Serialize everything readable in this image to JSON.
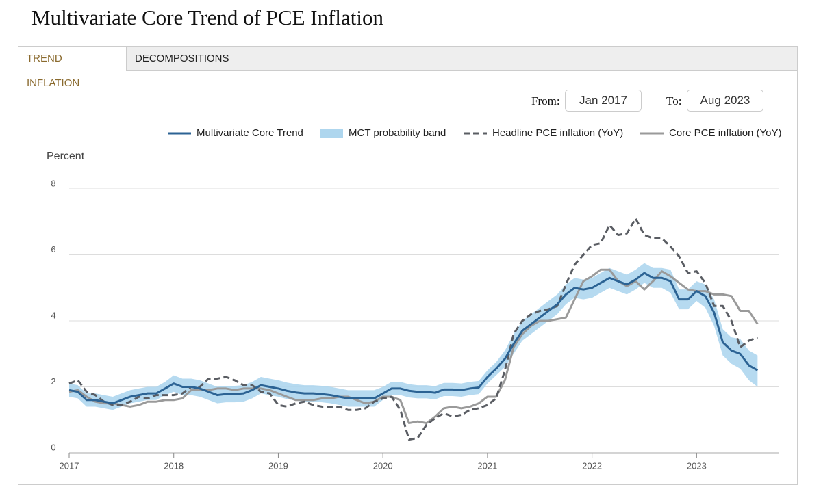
{
  "ui": {
    "tabs": [
      "TREND INFLATION",
      "DECOMPOSITIONS"
    ],
    "from_label": "From:",
    "from_value": "Jan 2017",
    "to_label": "To:",
    "to_value": "Aug 2023"
  },
  "chart_data": {
    "type": "line",
    "title": "Multivariate Core Trend of PCE Inflation",
    "y_label": "Percent",
    "x": [
      2017,
      2017.083,
      2017.167,
      2017.25,
      2017.333,
      2017.417,
      2017.5,
      2017.583,
      2017.667,
      2017.75,
      2017.833,
      2017.917,
      2018,
      2018.083,
      2018.167,
      2018.25,
      2018.333,
      2018.417,
      2018.5,
      2018.583,
      2018.667,
      2018.75,
      2018.833,
      2018.917,
      2019,
      2019.083,
      2019.167,
      2019.25,
      2019.333,
      2019.417,
      2019.5,
      2019.583,
      2019.667,
      2019.75,
      2019.833,
      2019.917,
      2020,
      2020.083,
      2020.167,
      2020.25,
      2020.333,
      2020.417,
      2020.5,
      2020.583,
      2020.667,
      2020.75,
      2020.833,
      2020.917,
      2021,
      2021.083,
      2021.167,
      2021.25,
      2021.333,
      2021.417,
      2021.5,
      2021.583,
      2021.667,
      2021.75,
      2021.833,
      2021.917,
      2022,
      2022.083,
      2022.167,
      2022.25,
      2022.333,
      2022.417,
      2022.5,
      2022.583,
      2022.667,
      2022.75,
      2022.833,
      2022.917,
      2023,
      2023.083,
      2023.167,
      2023.25,
      2023.333,
      2023.417,
      2023.5,
      2023.583
    ],
    "series": [
      {
        "name": "Multivariate Core Trend",
        "color": "#2c6394",
        "values": [
          1.9,
          1.85,
          1.6,
          1.6,
          1.55,
          1.5,
          1.6,
          1.7,
          1.75,
          1.8,
          1.8,
          1.95,
          2.1,
          2.0,
          2.0,
          1.95,
          1.85,
          1.75,
          1.78,
          1.78,
          1.8,
          1.9,
          2.05,
          2.0,
          1.95,
          1.88,
          1.83,
          1.8,
          1.8,
          1.78,
          1.75,
          1.7,
          1.65,
          1.65,
          1.65,
          1.65,
          1.8,
          1.95,
          1.95,
          1.88,
          1.85,
          1.85,
          1.82,
          1.92,
          1.92,
          1.9,
          1.95,
          1.98,
          2.3,
          2.55,
          2.85,
          3.3,
          3.7,
          3.9,
          4.1,
          4.3,
          4.5,
          4.8,
          5.0,
          4.95,
          5.0,
          5.15,
          5.3,
          5.2,
          5.1,
          5.25,
          5.45,
          5.3,
          5.3,
          5.2,
          4.65,
          4.65,
          4.9,
          4.75,
          4.25,
          3.35,
          3.1,
          3.0,
          2.65,
          2.5
        ]
      },
      {
        "name": "MCT probability band",
        "color": "#aed6ee",
        "band": true,
        "lower": [
          1.7,
          1.65,
          1.4,
          1.4,
          1.35,
          1.3,
          1.4,
          1.5,
          1.55,
          1.6,
          1.6,
          1.75,
          1.85,
          1.75,
          1.75,
          1.7,
          1.6,
          1.5,
          1.53,
          1.53,
          1.55,
          1.65,
          1.8,
          1.75,
          1.7,
          1.63,
          1.58,
          1.55,
          1.55,
          1.53,
          1.5,
          1.45,
          1.4,
          1.4,
          1.4,
          1.4,
          1.6,
          1.75,
          1.75,
          1.68,
          1.65,
          1.65,
          1.62,
          1.72,
          1.72,
          1.7,
          1.75,
          1.78,
          2.1,
          2.35,
          2.6,
          3.0,
          3.4,
          3.6,
          3.8,
          4.0,
          4.2,
          4.5,
          4.7,
          4.65,
          4.7,
          4.85,
          5.0,
          4.9,
          4.8,
          4.95,
          5.15,
          5.0,
          5.0,
          4.85,
          4.35,
          4.35,
          4.6,
          4.4,
          3.85,
          2.95,
          2.7,
          2.55,
          2.2,
          2.0
        ],
        "upper": [
          2.1,
          2.05,
          1.8,
          1.8,
          1.75,
          1.7,
          1.8,
          1.9,
          1.95,
          2.0,
          2.0,
          2.15,
          2.35,
          2.25,
          2.25,
          2.2,
          2.1,
          2.0,
          2.03,
          2.03,
          2.05,
          2.15,
          2.3,
          2.25,
          2.2,
          2.13,
          2.08,
          2.05,
          2.05,
          2.03,
          2.0,
          1.95,
          1.9,
          1.9,
          1.9,
          1.9,
          2.0,
          2.15,
          2.15,
          2.08,
          2.05,
          2.05,
          2.02,
          2.12,
          2.12,
          2.1,
          2.15,
          2.18,
          2.5,
          2.75,
          3.1,
          3.6,
          4.0,
          4.2,
          4.4,
          4.6,
          4.8,
          5.1,
          5.3,
          5.25,
          5.3,
          5.45,
          5.6,
          5.5,
          5.4,
          5.55,
          5.75,
          5.6,
          5.6,
          5.55,
          4.95,
          4.95,
          5.2,
          5.1,
          4.65,
          3.75,
          3.5,
          3.45,
          3.1,
          2.95
        ]
      },
      {
        "name": "Headline PCE inflation (YoY)",
        "color": "#5a5d63",
        "dashed": true,
        "values": [
          2.1,
          2.2,
          1.85,
          1.75,
          1.55,
          1.45,
          1.45,
          1.55,
          1.7,
          1.65,
          1.75,
          1.75,
          1.75,
          1.8,
          2.0,
          2.0,
          2.25,
          2.25,
          2.3,
          2.2,
          2.05,
          2.05,
          1.85,
          1.8,
          1.45,
          1.4,
          1.5,
          1.55,
          1.45,
          1.4,
          1.4,
          1.4,
          1.3,
          1.3,
          1.35,
          1.55,
          1.65,
          1.7,
          1.3,
          0.4,
          0.45,
          0.85,
          1.05,
          1.2,
          1.1,
          1.15,
          1.3,
          1.35,
          1.45,
          1.65,
          2.5,
          3.6,
          4.0,
          4.2,
          4.3,
          4.35,
          4.45,
          5.1,
          5.7,
          6.0,
          6.3,
          6.35,
          6.9,
          6.6,
          6.65,
          7.1,
          6.6,
          6.5,
          6.5,
          6.25,
          5.95,
          5.45,
          5.5,
          5.15,
          4.45,
          4.45,
          4.0,
          3.2,
          3.4,
          3.5
        ]
      },
      {
        "name": "Core PCE inflation (YoY)",
        "color": "#9a9a9a",
        "values": [
          1.85,
          1.9,
          1.7,
          1.55,
          1.5,
          1.5,
          1.45,
          1.4,
          1.45,
          1.55,
          1.55,
          1.6,
          1.6,
          1.65,
          1.9,
          1.9,
          1.9,
          1.95,
          1.95,
          1.9,
          1.95,
          1.95,
          1.95,
          1.9,
          1.8,
          1.7,
          1.6,
          1.6,
          1.6,
          1.65,
          1.65,
          1.7,
          1.7,
          1.6,
          1.5,
          1.55,
          1.7,
          1.7,
          1.6,
          0.9,
          0.95,
          0.9,
          1.1,
          1.35,
          1.4,
          1.35,
          1.4,
          1.5,
          1.7,
          1.7,
          2.2,
          3.2,
          3.6,
          3.85,
          4.0,
          4.0,
          4.05,
          4.1,
          4.65,
          5.2,
          5.35,
          5.55,
          5.55,
          5.2,
          5.05,
          5.2,
          4.95,
          5.2,
          5.5,
          5.35,
          5.15,
          4.95,
          4.9,
          4.9,
          4.8,
          4.8,
          4.75,
          4.3,
          4.3,
          3.9
        ]
      }
    ],
    "xlim": [
      2017,
      2023.79
    ],
    "ylim": [
      0,
      8
    ],
    "xticks": [
      2017,
      2018,
      2019,
      2020,
      2021,
      2022,
      2023
    ],
    "yticks": [
      0,
      2,
      4,
      6,
      8
    ],
    "grid": true
  }
}
